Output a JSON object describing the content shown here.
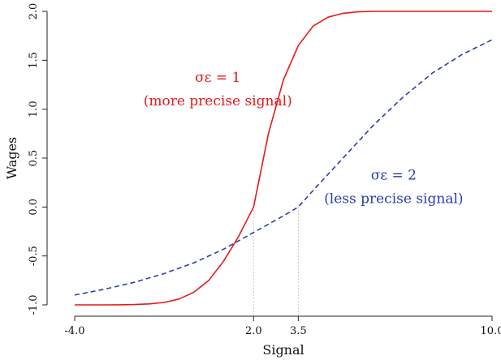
{
  "chart_data": {
    "type": "line",
    "title": "",
    "xlabel": "Signal",
    "ylabel": "Wages",
    "xlim": [
      -4.0,
      10.0
    ],
    "ylim": [
      -1.0,
      2.0
    ],
    "x_ticks": [
      {
        "value": -4.0,
        "label": "-4.0"
      },
      {
        "value": 2.0,
        "label": "2.0"
      },
      {
        "value": 3.5,
        "label": "3.5"
      },
      {
        "value": 10.0,
        "label": "10.0"
      }
    ],
    "y_ticks": [
      {
        "value": -1.0,
        "label": "-1.0"
      },
      {
        "value": -0.5,
        "label": "-0.5"
      },
      {
        "value": 0.0,
        "label": "0.0"
      },
      {
        "value": 0.5,
        "label": "0.5"
      },
      {
        "value": 1.0,
        "label": "1.0"
      },
      {
        "value": 1.5,
        "label": "1.5"
      },
      {
        "value": 2.0,
        "label": "2.0"
      }
    ],
    "grid": false,
    "legend": "none",
    "series": [
      {
        "color": "#e41a1c",
        "dash": "solid",
        "x": [
          -4.0,
          -3.5,
          -3.0,
          -2.5,
          -2.0,
          -1.5,
          -1.0,
          -0.5,
          0.0,
          0.5,
          1.0,
          1.5,
          2.0,
          2.5,
          3.0,
          3.5,
          4.0,
          4.5,
          5.0,
          5.5,
          6.0,
          7.0,
          8.0,
          9.0,
          10.0
        ],
        "y": [
          -1.0,
          -1.0,
          -1.0,
          -0.999,
          -0.997,
          -0.99,
          -0.975,
          -0.94,
          -0.87,
          -0.75,
          -0.55,
          -0.3,
          0.0,
          0.75,
          1.3,
          1.65,
          1.85,
          1.94,
          1.98,
          1.995,
          2.0,
          2.0,
          2.0,
          2.0,
          2.0
        ]
      },
      {
        "color": "#2b3ea8",
        "dash": "dashed",
        "x": [
          -4.0,
          -3.0,
          -2.0,
          -1.0,
          0.0,
          1.0,
          2.0,
          3.0,
          3.5,
          4.0,
          5.0,
          6.0,
          7.0,
          8.0,
          9.0,
          10.0
        ],
        "y": [
          -0.9,
          -0.84,
          -0.77,
          -0.68,
          -0.57,
          -0.43,
          -0.26,
          -0.09,
          0.0,
          0.17,
          0.5,
          0.83,
          1.12,
          1.37,
          1.56,
          1.71
        ]
      }
    ],
    "reference_lines": [
      {
        "x": 2.0,
        "y": 0.0
      },
      {
        "x": 3.5,
        "y": 0.0
      }
    ],
    "annotations": [
      {
        "line1": "σε = 1",
        "line2": "(more precise signal)",
        "color": "#e41a1c",
        "x": 0.8,
        "y1": 1.28,
        "y2": 1.04
      },
      {
        "line1": "σε = 2",
        "line2": "(less precise signal)",
        "color": "#2b3ea8",
        "x": 6.7,
        "y1": 0.28,
        "y2": 0.04
      }
    ]
  }
}
